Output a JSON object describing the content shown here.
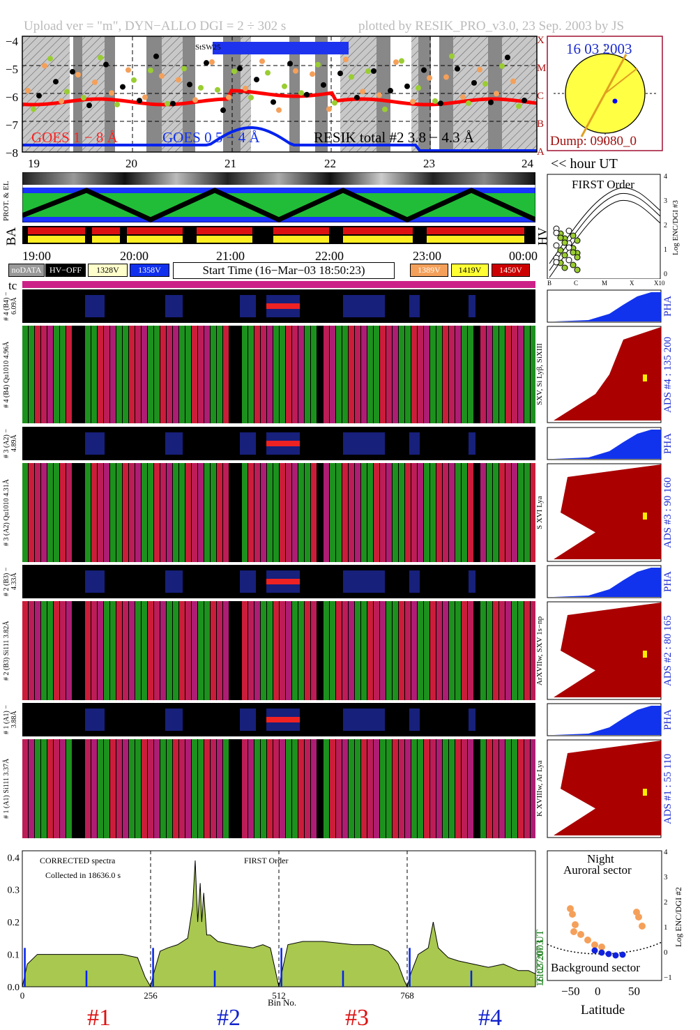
{
  "header": {
    "left": "Upload ver = \"m\", DYN−ALLO DGI =   2 ÷ 302 s",
    "right": "plotted by RESIK_PRO_v3.0, 23 Sep. 2003 by JS"
  },
  "goes": {
    "yticks": [
      "−4",
      "−5",
      "−6",
      "−7",
      "−8"
    ],
    "class_letters": [
      "X",
      "M",
      "C",
      "B",
      "A"
    ],
    "label_red": "GOES 1 − 8 Å",
    "label_blue": "GOES 0.5 − 4 Å",
    "label_black": "RESIK total #2  3.8 − 4.3 Å",
    "box_label": "StSW25",
    "colors": {
      "red": "#ff0000",
      "blue": "#0000ff",
      "orange": "#f5a05a",
      "green": "#9acd32"
    }
  },
  "sun": {
    "date": "16 03 2003",
    "dump": "Dump: 09080_0"
  },
  "hours_top": [
    "19",
    "20",
    "21",
    "22",
    "23",
    "24"
  ],
  "hour_ut": "<< hour UT",
  "side_labels": {
    "prot": "PROT. & EL",
    "ba": "BA",
    "hv": "HV",
    "tc": "tc"
  },
  "times": [
    "19:00",
    "20:00",
    "21:00",
    "22:00",
    "23:00",
    "00:00"
  ],
  "legend": {
    "nodata": "noDATA",
    "hvoff": "HV−OFF",
    "v1": "1328V",
    "v2": "1358V",
    "start": "Start Time (16−Mar−03 18:50:23)",
    "v3": "1389V",
    "v4": "1419V",
    "v5": "1450V"
  },
  "first_order": {
    "title": "FIRST Order",
    "xticks": [
      "B",
      "C",
      "M",
      "X",
      "X10"
    ],
    "yticks": [
      "0",
      "1",
      "2",
      "3",
      "4"
    ],
    "ylabel": "Log ENC/DGI #3"
  },
  "channels": [
    {
      "pha_label": "# 4 (B4) − 6.09Å",
      "ads_label": "# 4 (B4) Qu1010 4.96Å",
      "lines": "SXV, Si Lyβ, SiXIII",
      "ads_right": "ADS #4 :   135 200",
      "pha_right": "PHA"
    },
    {
      "pha_label": "# 3 (A2) − 4.89Å",
      "ads_label": "# 3 (A2) Qu1010 4.31Å",
      "lines": "S XVI Lya",
      "ads_right": "ADS #3 :    90 160",
      "pha_right": "PHA"
    },
    {
      "pha_label": "# 2 (B3) − 4.33Å",
      "ads_label": "# 2 (B3) Si111 3.82Å",
      "lines": "ArXVIIw, SXV 1s−np",
      "ads_right": "ADS #2 :    80 165",
      "pha_right": "PHA"
    },
    {
      "pha_label": "# 1 (A1) − 3.88Å",
      "ads_label": "# 1 (A1) Si111 3.37Å",
      "lines": "K XVIIIw, Ar Lya",
      "ads_right": "ADS #1 :    55 110",
      "pha_right": "PHA"
    }
  ],
  "chart_data": {
    "type": "area",
    "title": "FIRST Order",
    "annotation_1": "CORRECTED spectra",
    "annotation_2": "Collected in 18636.0 s",
    "xlabel": "Bin No.",
    "xlim": [
      0,
      1024
    ],
    "ylim": [
      0,
      0.42
    ],
    "xticks": [
      "0",
      "256",
      "512",
      "768"
    ],
    "yticks": [
      "0.0",
      "0.1",
      "0.2",
      "0.3",
      "0.4"
    ],
    "channel_labels": [
      "#1",
      "#2",
      "#3",
      "#4"
    ],
    "channel_colors": [
      "#dd1111",
      "#1122cc",
      "#dd1111",
      "#1122cc"
    ],
    "dividers": [
      256,
      512,
      768
    ],
    "series": [
      {
        "x": [
          0,
          10,
          30,
          60,
          100,
          150,
          200,
          230,
          245,
          256,
          262,
          275,
          290,
          310,
          330,
          340,
          345,
          350,
          355,
          358,
          362,
          368,
          375,
          390,
          420,
          460,
          480,
          495,
          505,
          512,
          520,
          530,
          560,
          600,
          660,
          700,
          730,
          750,
          762,
          768,
          775,
          790,
          800,
          810,
          815,
          820,
          830,
          850,
          870,
          900,
          930,
          960,
          990,
          1010,
          1024
        ],
        "values": [
          0.0,
          0.07,
          0.1,
          0.1,
          0.1,
          0.1,
          0.1,
          0.09,
          0.03,
          0.0,
          0.04,
          0.11,
          0.12,
          0.13,
          0.15,
          0.25,
          0.39,
          0.2,
          0.32,
          0.2,
          0.29,
          0.16,
          0.16,
          0.14,
          0.13,
          0.12,
          0.13,
          0.12,
          0.05,
          0.0,
          0.06,
          0.13,
          0.14,
          0.14,
          0.13,
          0.13,
          0.11,
          0.07,
          0.02,
          0.0,
          0.04,
          0.1,
          0.11,
          0.12,
          0.16,
          0.2,
          0.12,
          0.09,
          0.08,
          0.07,
          0.06,
          0.07,
          0.05,
          0.05,
          0.04
        ]
      }
    ],
    "side_time": "21:27:07 UT",
    "side_date": "16 03 2003"
  },
  "latitude_panel": {
    "title_1": "Night",
    "title_2": "Auroral sector",
    "bottom": "Background sector",
    "xlabel": "Latitude",
    "xticks": [
      "−50",
      "0",
      "50"
    ],
    "yticks": [
      "−1",
      "0",
      "1",
      "2",
      "3",
      "4"
    ],
    "ylabel": "Log ENC/DGI #2"
  }
}
